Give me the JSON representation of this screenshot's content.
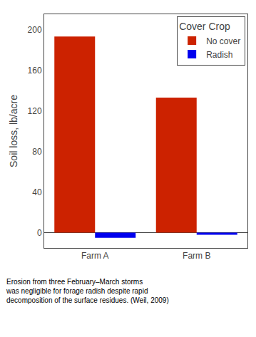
{
  "chart_data": {
    "type": "bar",
    "categories": [
      "Farm A",
      "Farm B"
    ],
    "series": [
      {
        "name": "No cover",
        "color": "#CC2200",
        "values": [
          193,
          133
        ]
      },
      {
        "name": "Radish",
        "color": "#0000EE",
        "values": [
          -5,
          -2
        ]
      }
    ],
    "ylabel": "Soil loss, lb/acre",
    "ylim": [
      -15,
      215
    ],
    "yticks": [
      0,
      40,
      80,
      120,
      160,
      200
    ],
    "legend_title": "Cover Crop",
    "legend": "upper right",
    "grid": false,
    "caption": "Erosion from three February–March storms\nwas negligible for forage radish despite rapid\ndecomposition of the surface residues. (Weil, 2009)"
  }
}
